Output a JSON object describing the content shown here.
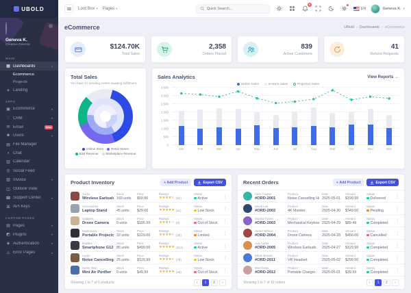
{
  "ui": {
    "caret": "▾",
    "chevron_up": "▴",
    "breadcrumb_sep": "›",
    "prev": "‹",
    "next": "›",
    "kebab": "⋮",
    "stars": "★★★★★"
  },
  "topbar": {
    "logo": "UBOLD",
    "menus": [
      {
        "label": "Loot Box"
      },
      {
        "label": "Pages"
      }
    ],
    "search_placeholder": "Quick Search...",
    "bell_badge": "5",
    "language": "EN",
    "user_name": "Geneva K."
  },
  "sidebar": {
    "user_name": "Geneva K.",
    "user_role": "Creative Director",
    "section_main": "Main",
    "dashboards_label": "Dashboards",
    "dashboards_icon": "dashboards-icon",
    "dashboards_children": [
      {
        "label": "Ecommerce"
      },
      {
        "label": "Projects"
      }
    ],
    "landing_label": "Landing",
    "landing_icon": "landing-icon",
    "section_apps": "Apps",
    "apps_items": [
      {
        "label": "Ecommerce",
        "icon": "ecommerce-icon",
        "chevron": "▾"
      },
      {
        "label": "CRM",
        "icon": "crm-icon",
        "chevron": "▾"
      },
      {
        "label": "Email",
        "icon": "email-icon",
        "badge": "New"
      },
      {
        "label": "Users",
        "icon": "users-icon",
        "chevron": "▾"
      },
      {
        "label": "File Manager",
        "icon": "file-manager-icon"
      },
      {
        "label": "Chat",
        "icon": "chat-icon"
      },
      {
        "label": "Calendar",
        "icon": "calendar-icon"
      },
      {
        "label": "Social Feed",
        "icon": "social-feed-icon"
      },
      {
        "label": "Invoice",
        "icon": "invoice-icon",
        "chevron": "▾"
      },
      {
        "label": "Outlook View",
        "icon": "outlook-view-icon"
      },
      {
        "label": "Support Center",
        "icon": "support-center-icon",
        "chevron": "▾"
      },
      {
        "label": "API Keys",
        "icon": "api-keys-icon"
      }
    ],
    "section_custom": "Custom Pages",
    "custom_items": [
      {
        "label": "Pages",
        "icon": "pages-icon",
        "chevron": "▾"
      },
      {
        "label": "Plugins",
        "icon": "plugins-icon",
        "chevron": "▾"
      },
      {
        "label": "Authentication",
        "icon": "authentication-icon",
        "chevron": "▾"
      },
      {
        "label": "Error Pages",
        "icon": "error-pages-icon",
        "chevron": "▾"
      }
    ]
  },
  "page": {
    "title": "eCommerce",
    "breadcrumb": [
      "UBold",
      "Dashboards",
      "eCommerce"
    ]
  },
  "stats": [
    {
      "value": "$124.70K",
      "label": "Total Sales",
      "icon": "wallet-icon",
      "icon_color": "#4a7dd9",
      "icon_bg": "#e4edfb"
    },
    {
      "value": "2,358",
      "label": "Orders Placed",
      "icon": "cart-icon",
      "icon_color": "#0aa87e",
      "icon_bg": "#d8f4ea"
    },
    {
      "value": "839",
      "label": "Active Customers",
      "icon": "customers-icon",
      "icon_color": "#23a8b8",
      "icon_bg": "#d9f1f4"
    },
    {
      "value": "41",
      "label": "Refund Requests",
      "icon": "refund-icon",
      "icon_color": "#f0923e",
      "icon_bg": "#fdeedd"
    }
  ],
  "total_sales": {
    "title": "Total Sales",
    "subtitle": "You have 21 pending orders awaiting fulfillment.",
    "legend": [
      {
        "label": "Online Store",
        "color": "#2b4be4"
      },
      {
        "label": "Retail Stores",
        "color": "#7468f0"
      },
      {
        "label": "B2B Revenue",
        "color": "#0fb488"
      },
      {
        "label": "Marketplace Revenue",
        "color": "#d8dce8"
      }
    ],
    "rings": {
      "outer": {
        "from": 15,
        "segs": [
          [
            "#2b4be4",
            145
          ],
          [
            "#7468f0",
            90
          ],
          [
            "#0fb488",
            65
          ],
          [
            "#e9ebf2",
            60
          ]
        ]
      },
      "middle": {
        "from": 150,
        "segs": [
          [
            "#9dabf5",
            125
          ],
          [
            "#e0e4fc",
            235
          ]
        ]
      },
      "inner": {
        "from": 80,
        "segs": [
          [
            "#c9d1fa",
            95
          ],
          [
            "#eef0fe",
            265
          ]
        ]
      }
    }
  },
  "sales_analytics": {
    "title": "Sales Analytics",
    "view_reports": "View Reports →",
    "chart_data": {
      "type": "bar+line",
      "categories": [
        "Jan",
        "Feb",
        "Mar",
        "Apr",
        "May",
        "Jun",
        "Jul",
        "Aug",
        "Sep",
        "Oct",
        "Nov",
        "Dec"
      ],
      "series": [
        {
          "name": "Online Sales",
          "type": "bar",
          "color": "#3e6ce5",
          "values": [
            1180,
            990,
            1080,
            1020,
            1200,
            1050,
            1100,
            1180,
            1080,
            1230,
            1240,
            1050
          ]
        },
        {
          "name": "In-store Sales",
          "type": "bar",
          "color": "#e9ebf0",
          "values": [
            890,
            1160,
            1170,
            1170,
            810,
            790,
            940,
            1100,
            870,
            830,
            980,
            770
          ]
        },
        {
          "name": "Projected Sales",
          "type": "line",
          "color": "#28bf94",
          "values": [
            3150,
            3080,
            2950,
            3270,
            2850,
            2560,
            2650,
            2800,
            3340,
            2760,
            2950,
            2840
          ]
        }
      ],
      "ylim": [
        0,
        3500
      ],
      "yticks": [
        "3,500",
        "3,000",
        "2,500",
        "2,000",
        "1,500",
        "1,000",
        "500",
        "0"
      ],
      "legend_position": "top",
      "grid": true
    }
  },
  "inventory": {
    "title": "Product Inventory",
    "add_button": "+ Add Product",
    "export_button": "Export CSV",
    "col_stock": "Stock",
    "col_price": "Price",
    "col_ratings": "Ratings",
    "col_status": "Status",
    "rows": [
      {
        "category": "Audio",
        "name": "Wireless Earbuds",
        "stock": "160 units",
        "price": "$59.90",
        "rating": 4.5,
        "rating_count": "(52)",
        "status": "Active",
        "status_color": "#0acf97",
        "thumb_color": "#8a4a43"
      },
      {
        "category": "Accessories",
        "name": "Laptop Stand",
        "stock": "45 units",
        "price": "$29.00",
        "rating": 5,
        "rating_count": "(11)",
        "status": "Low Stock",
        "status_color": "#f9bc0d",
        "thumb_color": "#9aa3ad"
      },
      {
        "category": "Gadgets",
        "name": "Drone Camera",
        "stock": "0 units",
        "price": "$195.99",
        "rating": 3.5,
        "rating_count": "(8)",
        "status": "Out of Stock",
        "status_color": "#f1556c",
        "thumb_color": "#c9b394"
      },
      {
        "category": "Electronics",
        "name": "Portable Projector",
        "stock": "32 units",
        "price": "$120.00",
        "rating": 4.5,
        "rating_count": "(36)",
        "status": "Limited",
        "status_color": "#fd7e14",
        "thumb_color": "#2e2e35"
      },
      {
        "category": "Mobiles",
        "name": "Smartphone G12",
        "stock": "85 units",
        "price": "$499.00",
        "rating": 5,
        "rating_count": "(112)",
        "status": "Active",
        "status_color": "#0acf97",
        "thumb_color": "#3a3a40"
      },
      {
        "category": "Audio",
        "name": "Noise Cancelling Headphones",
        "stock": "25 units",
        "price": "$129.99",
        "rating": 4.5,
        "rating_count": "(78)",
        "status": "Low Stock",
        "status_color": "#f9bc0d",
        "thumb_color": "#7a5b44"
      },
      {
        "category": "Home Tech",
        "name": "Mini Air Purifier",
        "stock": "0 units",
        "price": "$49.99",
        "rating": 5,
        "rating_count": "(34)",
        "status": "Out of Stock",
        "status_color": "#f1556c",
        "thumb_color": "#4a6fa5"
      }
    ],
    "footer": "Showing 1 to 7 of 9 products",
    "pages": [
      {
        "label": "1",
        "active": true
      },
      {
        "label": "2"
      }
    ]
  },
  "orders": {
    "title": "Recent Orders",
    "add_button": "+ Add Product",
    "export_button": "Export CSV",
    "col_product": "Product",
    "col_date": "Date",
    "col_amount": "Amount",
    "col_status": "Status",
    "rows": [
      {
        "customer": "Alice Cooper",
        "order_id": "#ORD-2001",
        "product": "Noise Cancelling Headphones",
        "date": "2025-05-01",
        "amount": "$199.99",
        "status": "Delivered",
        "status_color": "#0acf97",
        "avatar_color": "#35b8a2"
      },
      {
        "customer": "David Lee",
        "order_id": "#ORD-2002",
        "product": "4K Monitor",
        "date": "2025-04-30",
        "amount": "$349.00",
        "status": "Pending",
        "status_color": "#fd7e14",
        "avatar_color": "#31486e"
      },
      {
        "customer": "Sophia Turner",
        "order_id": "#ORD-2003",
        "product": "Mechanical Keyboard",
        "date": "2025-04-29",
        "amount": "$89.49",
        "status": "Completed",
        "status_color": "#0acf97",
        "avatar_color": "#8a63c9"
      },
      {
        "customer": "James Wilson",
        "order_id": "#ORD-2004",
        "product": "Drone Camera",
        "date": "2025-04-28",
        "amount": "$450.00",
        "status": "Cancelled",
        "status_color": "#f1556c",
        "avatar_color": "#a24545"
      },
      {
        "customer": "Ava Carter",
        "order_id": "#ORD-2005",
        "product": "Wireless Earbuds",
        "date": "2025-04-27",
        "amount": "$129.99",
        "status": "Completed",
        "status_color": "#0acf97",
        "avatar_color": "#d98f4e"
      },
      {
        "customer": "Ethan Brooks",
        "order_id": "#ORD-2011",
        "product": "VR Headset",
        "date": "2025-05-02",
        "amount": "$299.00",
        "status": "Completed",
        "status_color": "#0acf97",
        "avatar_color": "#4a7bd9"
      },
      {
        "customer": "Mia Clarke",
        "order_id": "#ORD-2012",
        "product": "Portable Charger",
        "date": "2025-05-01",
        "amount": "$39.99",
        "status": "Completed",
        "status_color": "#0acf97",
        "avatar_color": "#c9a0a0"
      }
    ],
    "footer": "Showing 1 to 7 of 10 orders",
    "pages": [
      {
        "label": "1",
        "active": true
      },
      {
        "label": "2"
      }
    ]
  }
}
